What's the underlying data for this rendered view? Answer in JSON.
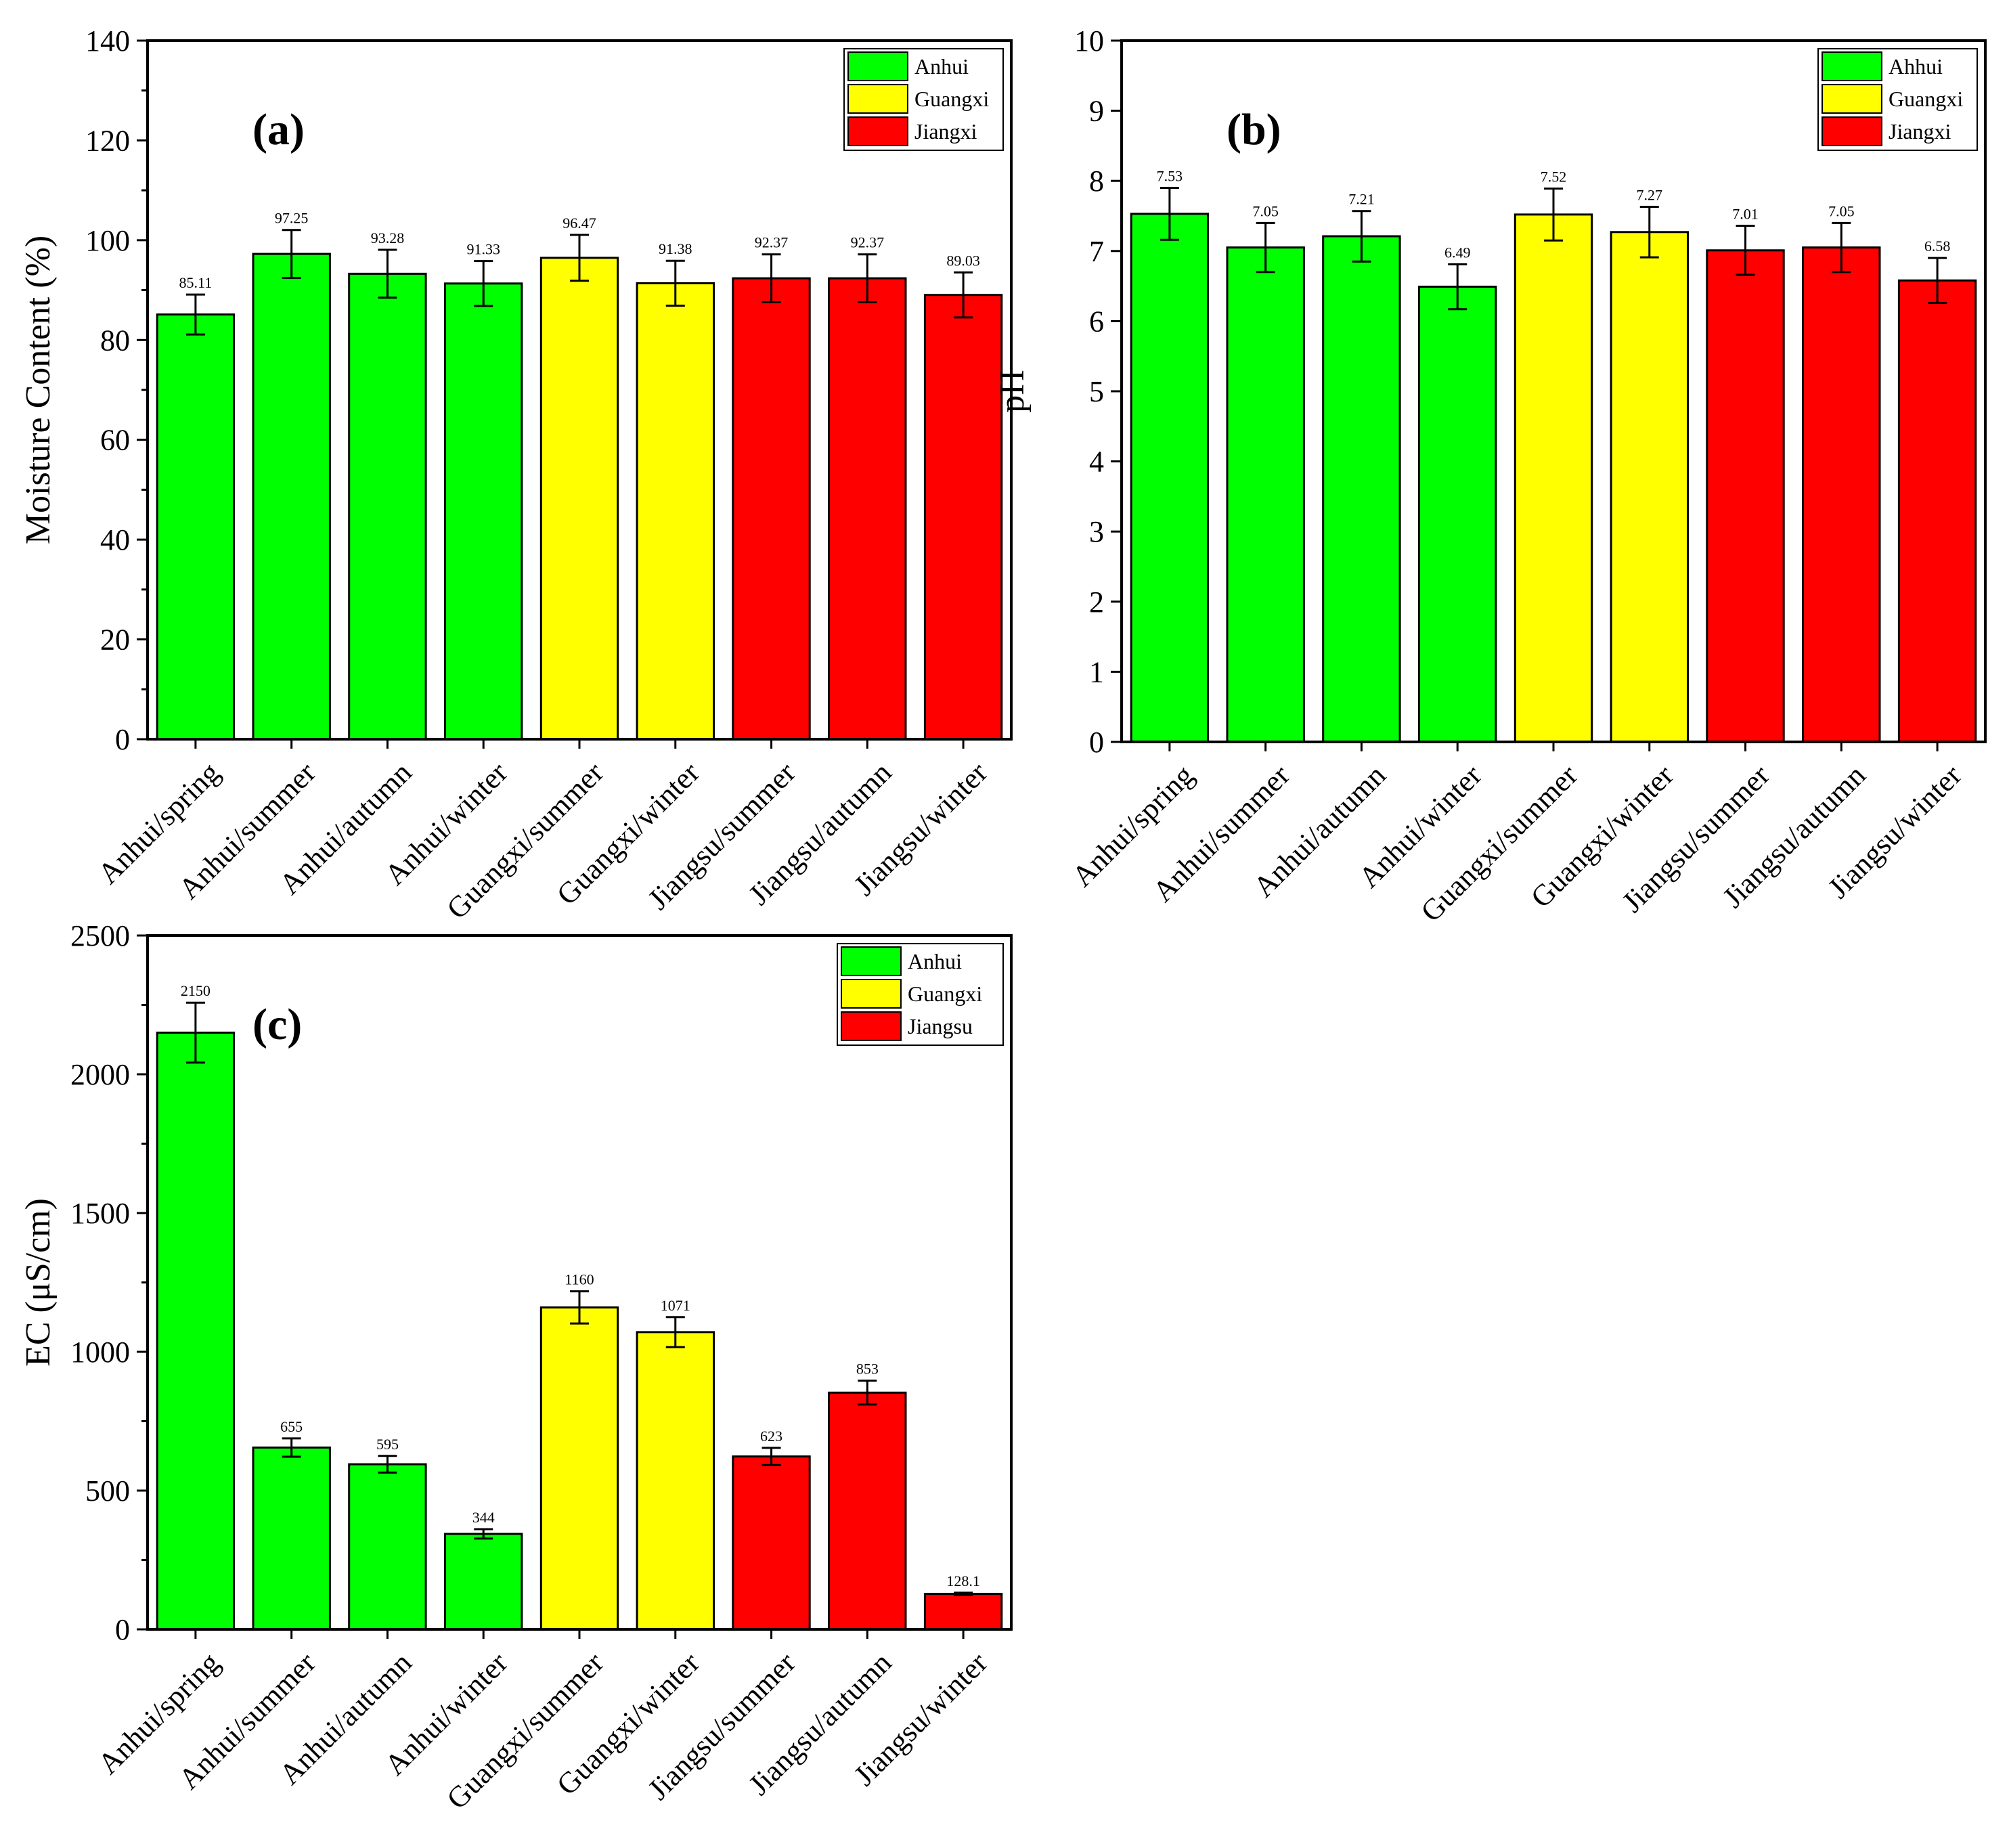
{
  "colors": {
    "green": "#00ff00",
    "yellow": "#ffff00",
    "red": "#ff0000",
    "stroke": "#000000"
  },
  "chart_data": [
    {
      "type": "bar",
      "panel": "(a)",
      "ylabel": "Moisture Content (%)",
      "ylim": [
        0,
        140
      ],
      "yticks": [
        "0",
        "20",
        "40",
        "60",
        "80",
        "100",
        "120",
        "140"
      ],
      "minor_ticks": true,
      "categories": [
        "Anhui/spring",
        "Anhui/summer",
        "Anhui/autumn",
        "Anhui/winter",
        "Guangxi/summer",
        "Guangxi/winter",
        "Jiangsu/summer",
        "Jiangsu/autumn",
        "Jiangsu/winter"
      ],
      "values": [
        85.11,
        97.25,
        93.28,
        91.33,
        96.47,
        91.38,
        92.37,
        92.37,
        89.03
      ],
      "labels": [
        "85.11",
        "97.25",
        "93.28",
        "91.33",
        "96.47",
        "91.38",
        "92.37",
        "92.37",
        "89.03"
      ],
      "errors": [
        4.0,
        4.8,
        4.8,
        4.5,
        4.6,
        4.5,
        4.8,
        4.8,
        4.5
      ],
      "bar_colors": [
        "green",
        "green",
        "green",
        "green",
        "yellow",
        "yellow",
        "red",
        "red",
        "red"
      ],
      "legend": [
        {
          "label": "Anhui",
          "color": "green"
        },
        {
          "label": "Guangxi",
          "color": "yellow"
        },
        {
          "label": "Jiangxi",
          "color": "red"
        }
      ],
      "legend_position": "top-right"
    },
    {
      "type": "bar",
      "panel": "(b)",
      "ylabel": "pH",
      "ylim": [
        0,
        10
      ],
      "yticks": [
        "0",
        "1",
        "2",
        "3",
        "4",
        "5",
        "6",
        "7",
        "8",
        "9",
        "10"
      ],
      "minor_ticks": false,
      "categories": [
        "Anhui/spring",
        "Anhui/summer",
        "Anhui/autumn",
        "Anhui/winter",
        "Guangxi/summer",
        "Guangxi/winter",
        "Jiangsu/summer",
        "Jiangsu/autumn",
        "Jiangsu/winter"
      ],
      "values": [
        7.53,
        7.05,
        7.21,
        6.49,
        7.52,
        7.27,
        7.01,
        7.05,
        6.58
      ],
      "labels": [
        "7.53",
        "7.05",
        "7.21",
        "6.49",
        "7.52",
        "7.27",
        "7.01",
        "7.05",
        "6.58"
      ],
      "errors": [
        0.37,
        0.35,
        0.36,
        0.32,
        0.37,
        0.36,
        0.35,
        0.35,
        0.32
      ],
      "bar_colors": [
        "green",
        "green",
        "green",
        "green",
        "yellow",
        "yellow",
        "red",
        "red",
        "red"
      ],
      "legend": [
        {
          "label": "Ahhui",
          "color": "green"
        },
        {
          "label": "Guangxi",
          "color": "yellow"
        },
        {
          "label": "Jiangxi",
          "color": "red"
        }
      ],
      "legend_position": "top-right"
    },
    {
      "type": "bar",
      "panel": "(c)",
      "ylabel": "EC (μS/cm)",
      "ylim": [
        0,
        2500
      ],
      "yticks": [
        "0",
        "500",
        "1000",
        "1500",
        "2000",
        "2500"
      ],
      "minor_ticks": true,
      "categories": [
        "Anhui/spring",
        "Anhui/summer",
        "Anhui/autumn",
        "Anhui/winter",
        "Guangxi/summer",
        "Guangxi/winter",
        "Jiangsu/summer",
        "Jiangsu/autumn",
        "Jiangsu/winter"
      ],
      "values": [
        2150,
        655,
        595,
        344,
        1160,
        1071,
        623,
        853,
        128.1
      ],
      "labels": [
        "2150",
        "655",
        "595",
        "344",
        "1160",
        "1071",
        "623",
        "853",
        "128.1"
      ],
      "errors": [
        108,
        33,
        30,
        17,
        58,
        54,
        31,
        43,
        4
      ],
      "bar_colors": [
        "green",
        "green",
        "green",
        "green",
        "yellow",
        "yellow",
        "red",
        "red",
        "red"
      ],
      "legend": [
        {
          "label": "Anhui",
          "color": "green"
        },
        {
          "label": "Guangxi",
          "color": "yellow"
        },
        {
          "label": "Jiangsu",
          "color": "red"
        }
      ],
      "legend_position": "top-right"
    }
  ]
}
